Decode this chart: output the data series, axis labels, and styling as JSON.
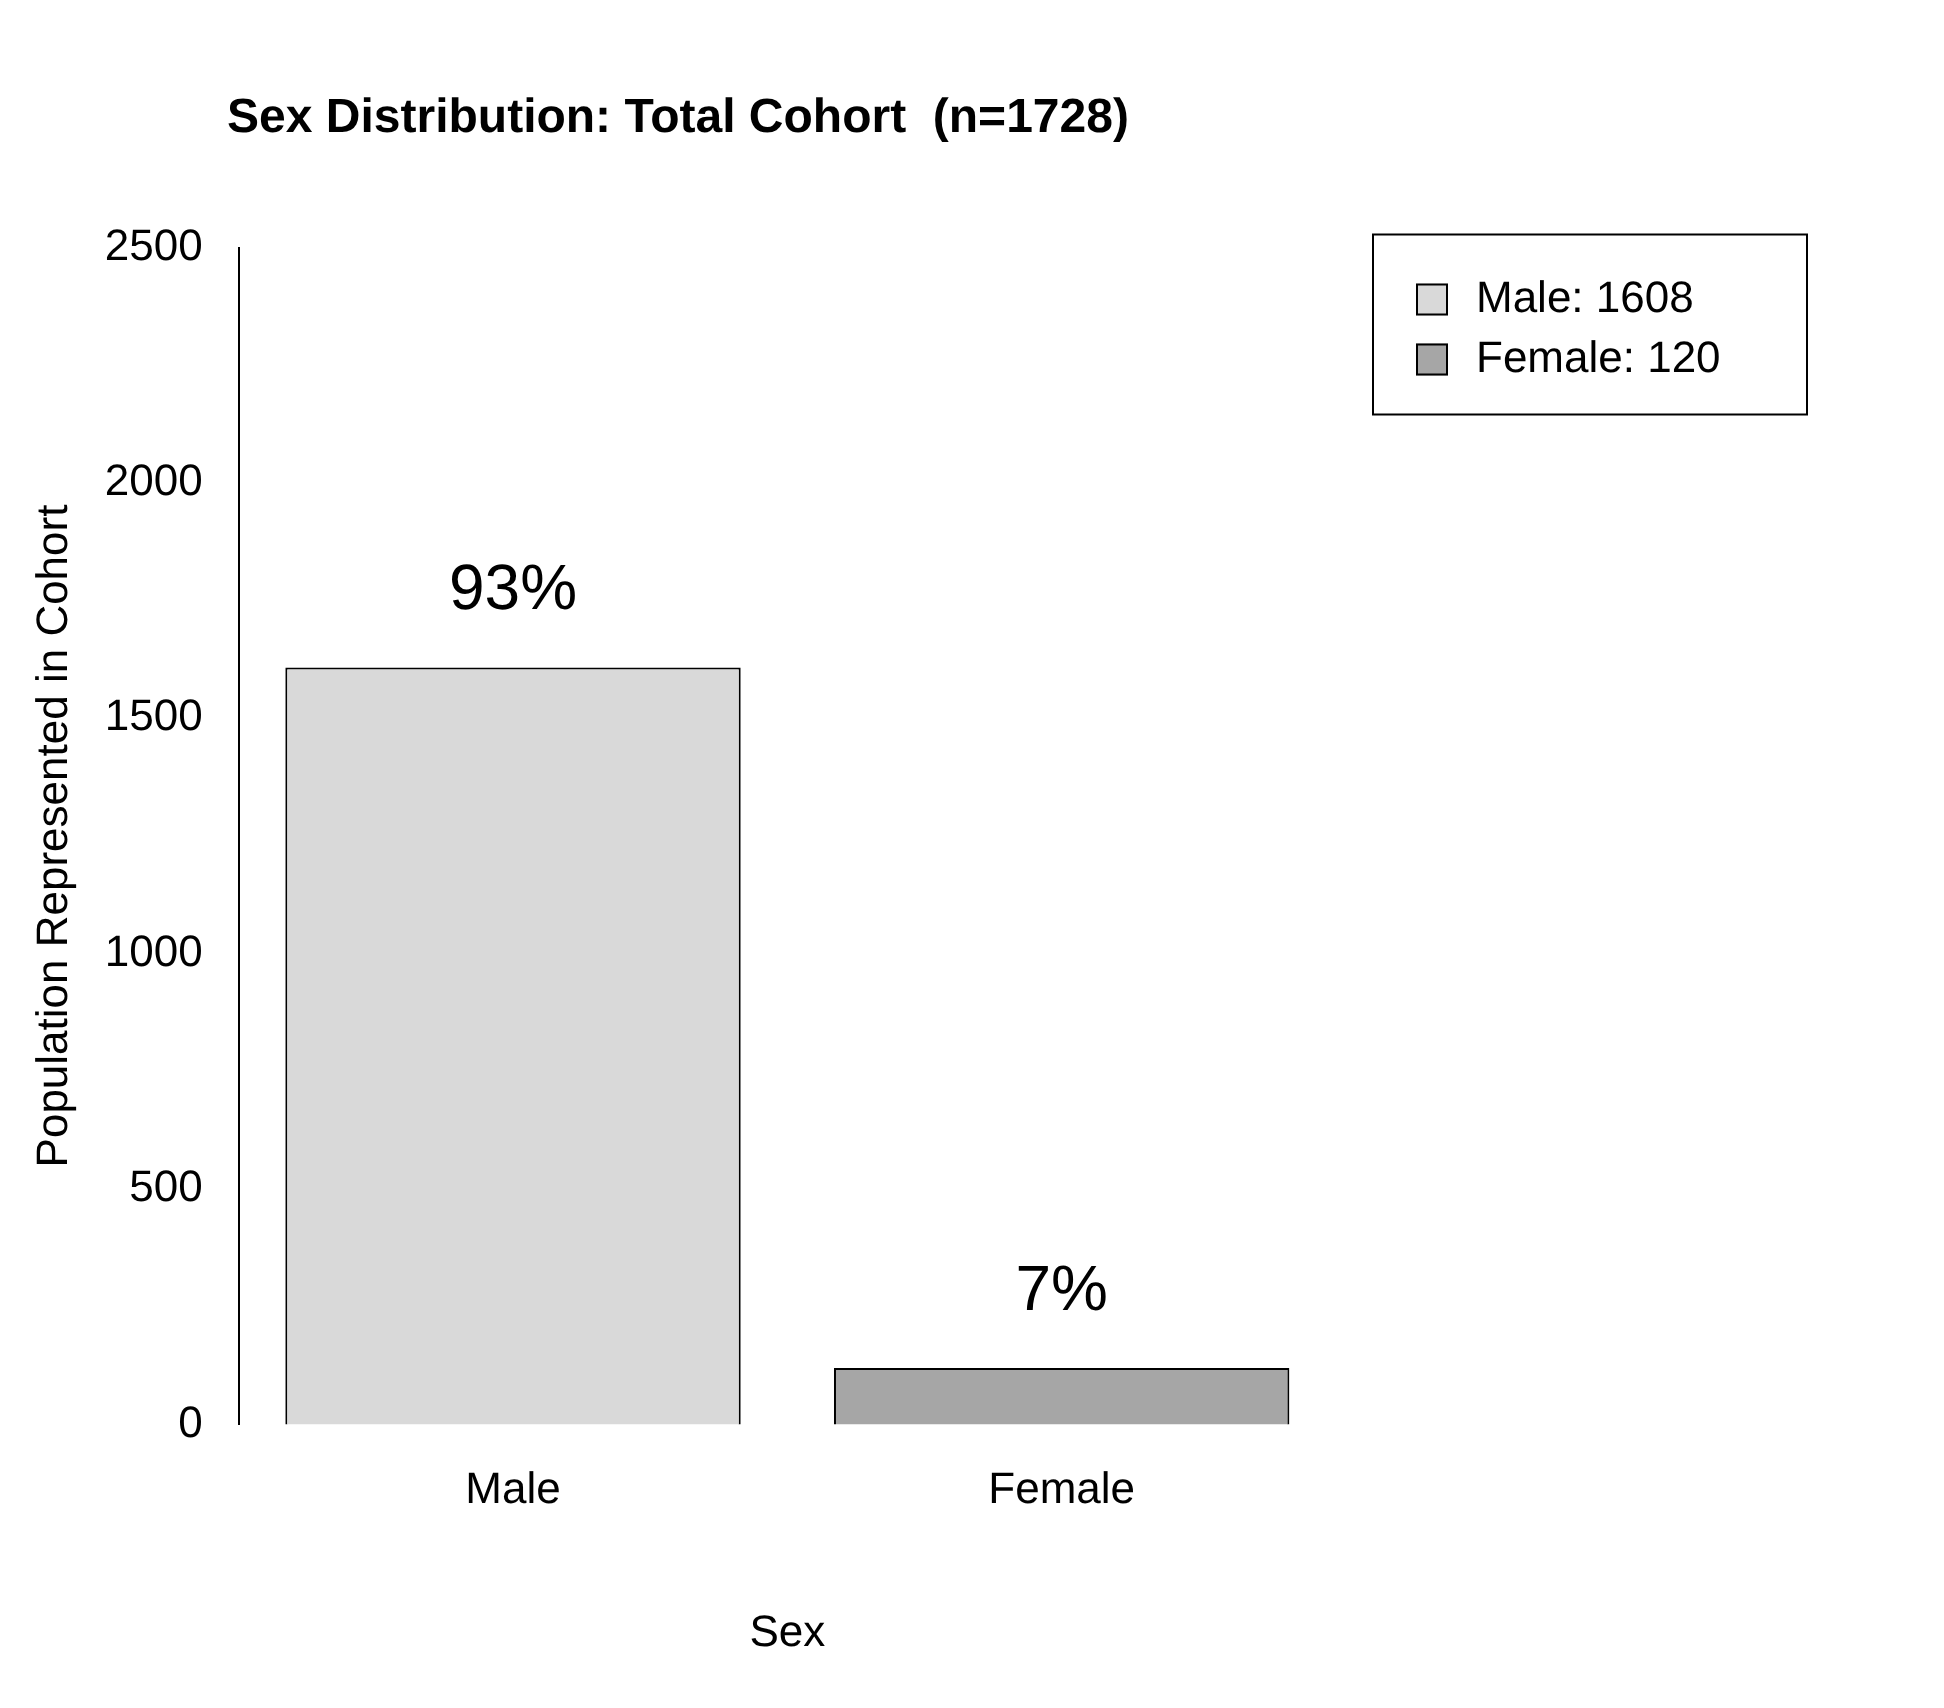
{
  "chart_data": {
    "type": "bar",
    "title": "Sex Distribution: Total Cohort  (n=1728)",
    "xlabel": "Sex",
    "ylabel": "Population Represented in Cohort",
    "categories": [
      "Male",
      "Female"
    ],
    "series": [
      {
        "name": "Male: 1608",
        "color": "#d9d9d9",
        "values": [
          1608,
          null
        ]
      },
      {
        "name": "Female: 120",
        "color": "#a6a6a6",
        "values": [
          null,
          120
        ]
      }
    ],
    "annotations": [
      {
        "text": "93%",
        "x": "Male",
        "y": 1608
      },
      {
        "text": "7%",
        "x": "Female",
        "y": 120
      }
    ],
    "ylim": [
      0,
      2500
    ],
    "yticks": [
      0,
      500,
      1000,
      1500,
      2000,
      2500
    ],
    "grid": false,
    "legend": "top right"
  }
}
